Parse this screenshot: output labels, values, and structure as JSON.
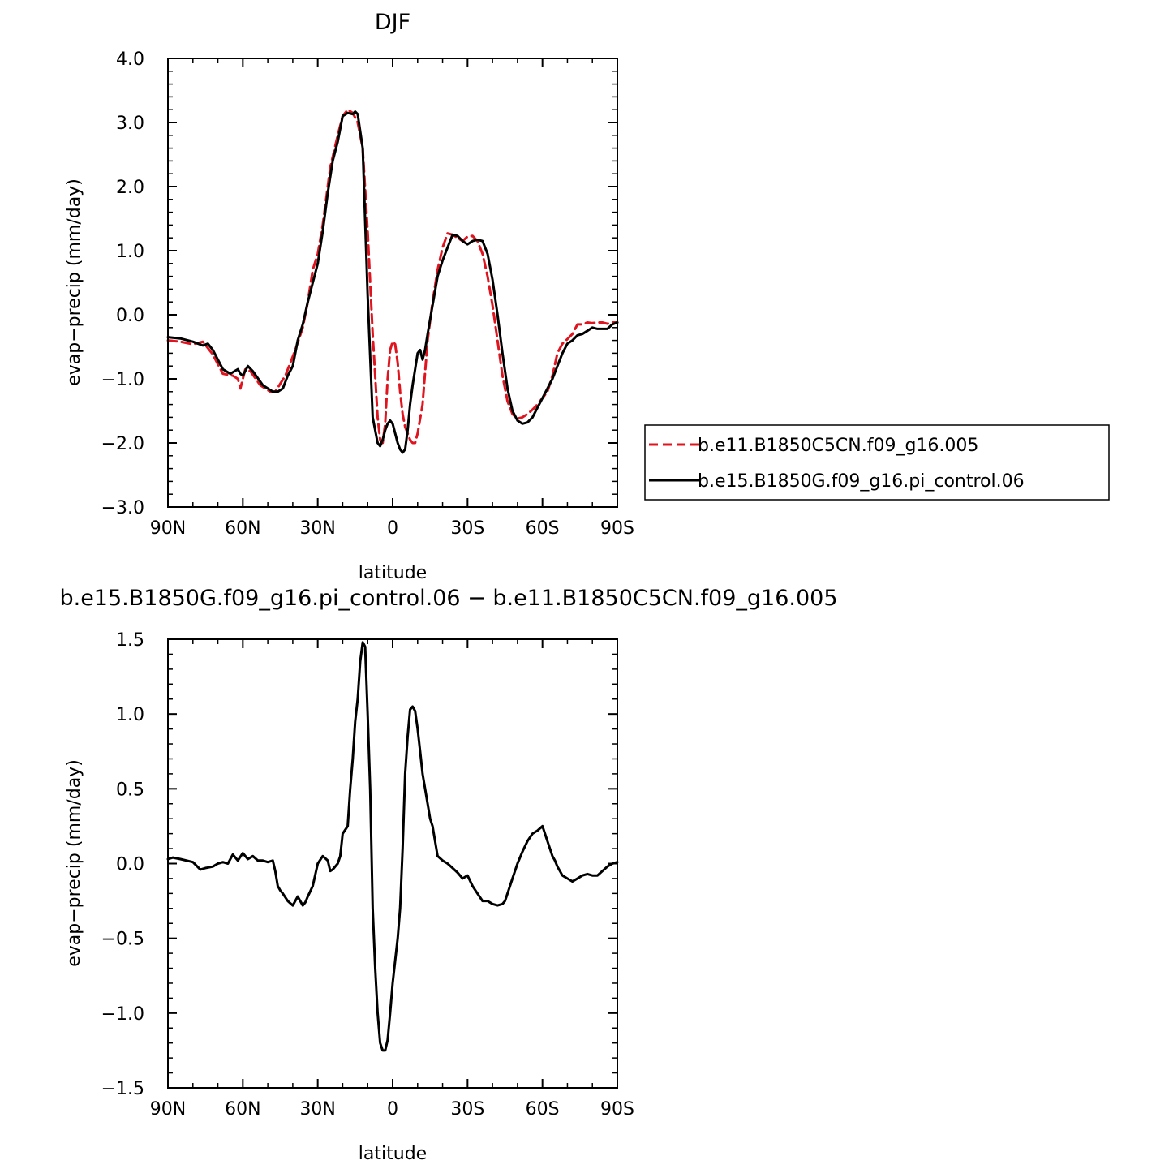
{
  "chart_data": [
    {
      "type": "line",
      "title": "DJF",
      "xlabel": "latitude",
      "ylabel": "evap−precip (mm/day)",
      "xlim": [
        90,
        -90
      ],
      "ylim": [
        -3.0,
        4.0
      ],
      "xticks": [
        90,
        60,
        30,
        0,
        -30,
        -60,
        -90
      ],
      "xtick_labels": [
        "90N",
        "60N",
        "30N",
        "0",
        "30S",
        "60S",
        "90S"
      ],
      "yticks": [
        4,
        3,
        2,
        1,
        0,
        -1,
        -2,
        -3
      ],
      "ytick_labels": [
        "4.0",
        "3.0",
        "2.0",
        "1.0",
        "0.0",
        "−1.0",
        "−2.0",
        "−3.0"
      ],
      "grid": false,
      "legend_position": "right",
      "series": [
        {
          "name": "b.e11.B1850C5CN.f09_g16.005",
          "color": "#e0141e",
          "dash": "dashed",
          "x": [
            90,
            85,
            80,
            76,
            72,
            68,
            64,
            62,
            61,
            59,
            57,
            53,
            49,
            47,
            43,
            39,
            36,
            34,
            32,
            30,
            28,
            25,
            22,
            20,
            18,
            16,
            14,
            12,
            10,
            8,
            6,
            5,
            4,
            3,
            2,
            1,
            0,
            -1,
            -2,
            -3,
            -4,
            -5,
            -6,
            -7,
            -8,
            -9,
            -10,
            -12,
            -14,
            -16,
            -18,
            -20,
            -22,
            -24,
            -26,
            -28,
            -30,
            -32,
            -34,
            -36,
            -38,
            -40,
            -42,
            -44,
            -46,
            -48,
            -50,
            -52,
            -54,
            -56,
            -58,
            -60,
            -62,
            -64,
            -66,
            -68,
            -70,
            -72,
            -74,
            -76,
            -78,
            -80,
            -82,
            -84,
            -86,
            -88,
            -90
          ],
          "y": [
            -0.4,
            -0.42,
            -0.46,
            -0.42,
            -0.62,
            -0.92,
            -0.95,
            -1.0,
            -1.15,
            -0.85,
            -0.88,
            -1.1,
            -1.2,
            -1.2,
            -0.95,
            -0.55,
            -0.2,
            0.2,
            0.7,
            0.95,
            1.4,
            2.3,
            2.8,
            3.1,
            3.2,
            3.15,
            3.0,
            2.6,
            1.3,
            -0.3,
            -1.6,
            -1.95,
            -2.0,
            -1.7,
            -1.0,
            -0.55,
            -0.42,
            -0.46,
            -0.75,
            -1.2,
            -1.55,
            -1.75,
            -1.85,
            -1.95,
            -2.0,
            -2.0,
            -1.85,
            -1.4,
            -0.4,
            0.2,
            0.7,
            1.05,
            1.27,
            1.25,
            1.2,
            1.15,
            1.22,
            1.23,
            1.15,
            0.95,
            0.6,
            0.15,
            -0.4,
            -0.95,
            -1.35,
            -1.55,
            -1.62,
            -1.6,
            -1.55,
            -1.48,
            -1.4,
            -1.3,
            -1.2,
            -0.95,
            -0.6,
            -0.45,
            -0.38,
            -0.3,
            -0.15,
            -0.15,
            -0.12,
            -0.13,
            -0.12,
            -0.12,
            -0.14,
            -0.12,
            -0.12
          ]
        },
        {
          "name": "b.e15.B1850G.f09_g16.pi_control.06",
          "color": "#000000",
          "dash": "solid",
          "x": [
            90,
            85,
            80,
            76,
            74,
            72,
            68,
            65,
            62,
            61,
            60,
            58,
            56,
            52,
            48,
            46,
            44,
            42,
            40,
            38,
            36,
            34,
            32,
            30,
            28,
            26,
            24,
            22,
            20,
            18,
            16,
            15,
            14,
            12,
            10,
            8,
            6,
            5,
            4,
            3,
            2,
            1,
            0,
            -1,
            -2,
            -3,
            -4,
            -5,
            -6,
            -7,
            -8,
            -10,
            -11,
            -12,
            -13,
            -14,
            -16,
            -18,
            -20,
            -22,
            -24,
            -26,
            -28,
            -30,
            -32,
            -34,
            -36,
            -38,
            -40,
            -42,
            -44,
            -46,
            -48,
            -50,
            -52,
            -54,
            -56,
            -58,
            -60,
            -62,
            -64,
            -66,
            -68,
            -70,
            -72,
            -74,
            -76,
            -78,
            -80,
            -82,
            -84,
            -86,
            -88,
            -90
          ],
          "y": [
            -0.35,
            -0.37,
            -0.42,
            -0.48,
            -0.45,
            -0.55,
            -0.85,
            -0.92,
            -0.85,
            -0.92,
            -0.95,
            -0.8,
            -0.88,
            -1.1,
            -1.2,
            -1.2,
            -1.15,
            -0.95,
            -0.8,
            -0.4,
            -0.15,
            0.2,
            0.5,
            0.8,
            1.3,
            1.9,
            2.4,
            2.7,
            3.1,
            3.15,
            3.13,
            3.17,
            3.13,
            2.6,
            0.3,
            -1.6,
            -2.0,
            -2.05,
            -1.95,
            -1.8,
            -1.7,
            -1.65,
            -1.7,
            -1.85,
            -2.0,
            -2.1,
            -2.15,
            -2.1,
            -1.8,
            -1.4,
            -1.1,
            -0.6,
            -0.55,
            -0.7,
            -0.55,
            -0.3,
            0.15,
            0.6,
            0.85,
            1.05,
            1.25,
            1.23,
            1.15,
            1.1,
            1.15,
            1.17,
            1.15,
            0.95,
            0.55,
            0.0,
            -0.6,
            -1.15,
            -1.5,
            -1.65,
            -1.7,
            -1.68,
            -1.6,
            -1.45,
            -1.3,
            -1.15,
            -1.0,
            -0.8,
            -0.6,
            -0.45,
            -0.4,
            -0.32,
            -0.3,
            -0.25,
            -0.2,
            -0.22,
            -0.22,
            -0.22,
            -0.15,
            -0.12
          ]
        }
      ]
    },
    {
      "type": "line",
      "title": "b.e15.B1850G.f09_g16.pi_control.06 − b.e11.B1850C5CN.f09_g16.005",
      "xlabel": "latitude",
      "ylabel": "evap−precip (mm/day)",
      "xlim": [
        90,
        -90
      ],
      "ylim": [
        -1.5,
        1.5
      ],
      "xticks": [
        90,
        60,
        30,
        0,
        -30,
        -60,
        -90
      ],
      "xtick_labels": [
        "90N",
        "60N",
        "30N",
        "0",
        "30S",
        "60S",
        "90S"
      ],
      "yticks": [
        1.5,
        1.0,
        0.5,
        0.0,
        -0.5,
        -1.0,
        -1.5
      ],
      "ytick_labels": [
        "1.5",
        "1.0",
        "0.5",
        "0.0",
        "−0.5",
        "−1.0",
        "−1.5"
      ],
      "grid": false,
      "series": [
        {
          "color": "#000000",
          "dash": "solid",
          "x": [
            90,
            88,
            85,
            80,
            77,
            75,
            72,
            70,
            68,
            66,
            64,
            62,
            60,
            58,
            56,
            54,
            52,
            50,
            48,
            47,
            46,
            45,
            44,
            42,
            40,
            38,
            37,
            36,
            35,
            34,
            32,
            30,
            28,
            26,
            25,
            24,
            23,
            22,
            21,
            20,
            18,
            17,
            16,
            15,
            14,
            13,
            12,
            11,
            10,
            9,
            8,
            7,
            6,
            5,
            4,
            3,
            2,
            1,
            0,
            -1,
            -2,
            -3,
            -4,
            -5,
            -6,
            -7,
            -8,
            -9,
            -10,
            -11,
            -12,
            -13,
            -14,
            -15,
            -16,
            -18,
            -20,
            -22,
            -24,
            -26,
            -28,
            -30,
            -32,
            -34,
            -36,
            -38,
            -40,
            -42,
            -44,
            -45,
            -46,
            -48,
            -50,
            -52,
            -54,
            -56,
            -58,
            -60,
            -62,
            -64,
            -65,
            -66,
            -67,
            -68,
            -70,
            -72,
            -74,
            -76,
            -78,
            -80,
            -82,
            -84,
            -86,
            -88,
            -90
          ],
          "y": [
            0.03,
            0.04,
            0.03,
            0.01,
            -0.04,
            -0.03,
            -0.02,
            0.0,
            0.01,
            0.0,
            0.06,
            0.02,
            0.07,
            0.03,
            0.05,
            0.02,
            0.02,
            0.01,
            0.02,
            -0.05,
            -0.15,
            -0.18,
            -0.2,
            -0.25,
            -0.28,
            -0.22,
            -0.25,
            -0.28,
            -0.26,
            -0.22,
            -0.15,
            0.0,
            0.05,
            0.02,
            -0.05,
            -0.04,
            -0.02,
            0.0,
            0.05,
            0.2,
            0.25,
            0.5,
            0.7,
            0.95,
            1.1,
            1.35,
            1.48,
            1.45,
            1.0,
            0.5,
            -0.3,
            -0.7,
            -1.0,
            -1.2,
            -1.25,
            -1.25,
            -1.18,
            -1.0,
            -0.8,
            -0.65,
            -0.5,
            -0.3,
            0.1,
            0.6,
            0.85,
            1.03,
            1.05,
            1.02,
            0.9,
            0.75,
            0.6,
            0.5,
            0.4,
            0.3,
            0.25,
            0.05,
            0.02,
            0.0,
            -0.03,
            -0.06,
            -0.1,
            -0.08,
            -0.15,
            -0.2,
            -0.25,
            -0.25,
            -0.27,
            -0.28,
            -0.27,
            -0.25,
            -0.2,
            -0.1,
            0.0,
            0.08,
            0.15,
            0.2,
            0.22,
            0.25,
            0.15,
            0.05,
            0.02,
            -0.02,
            -0.05,
            -0.08,
            -0.1,
            -0.12,
            -0.1,
            -0.08,
            -0.07,
            -0.08,
            -0.08,
            -0.05,
            -0.02,
            0.0,
            0.01
          ]
        }
      ]
    }
  ]
}
